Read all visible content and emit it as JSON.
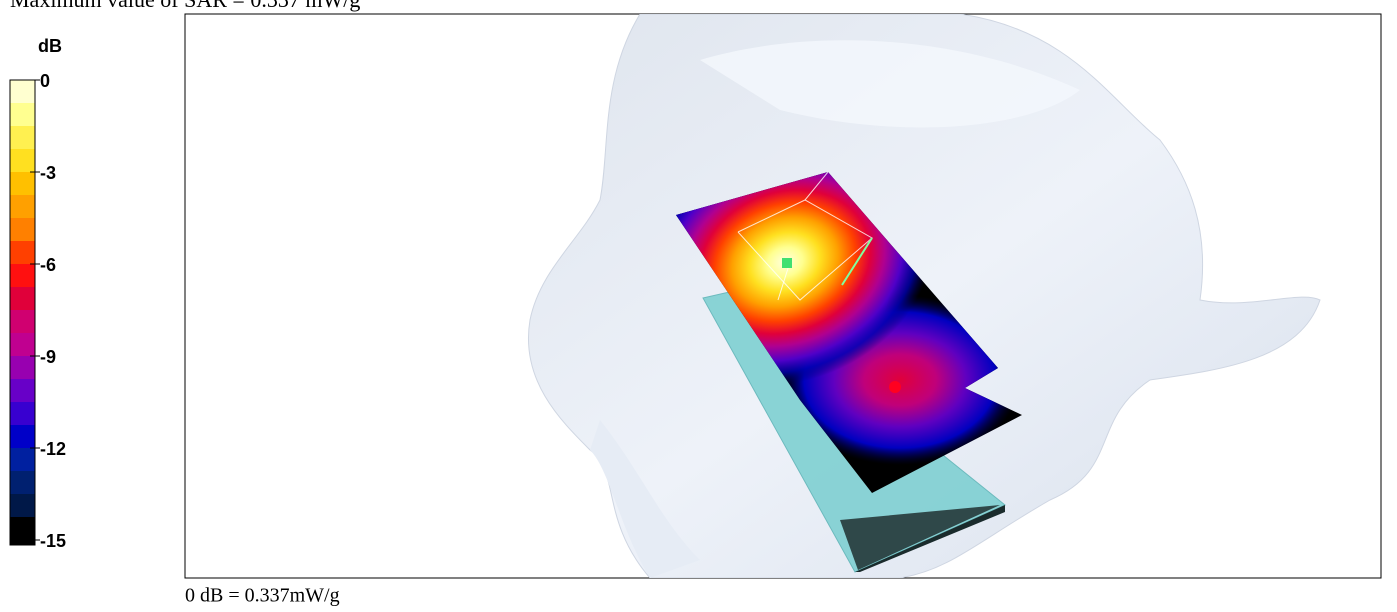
{
  "header": {
    "title": "Maximum value of SAR = 0.337 mW/g"
  },
  "colorbar": {
    "unit": "dB",
    "ticks": [
      0,
      -3,
      -6,
      -9,
      -12,
      -15
    ]
  },
  "footer": {
    "reference": "0 dB = 0.337mW/g"
  }
}
